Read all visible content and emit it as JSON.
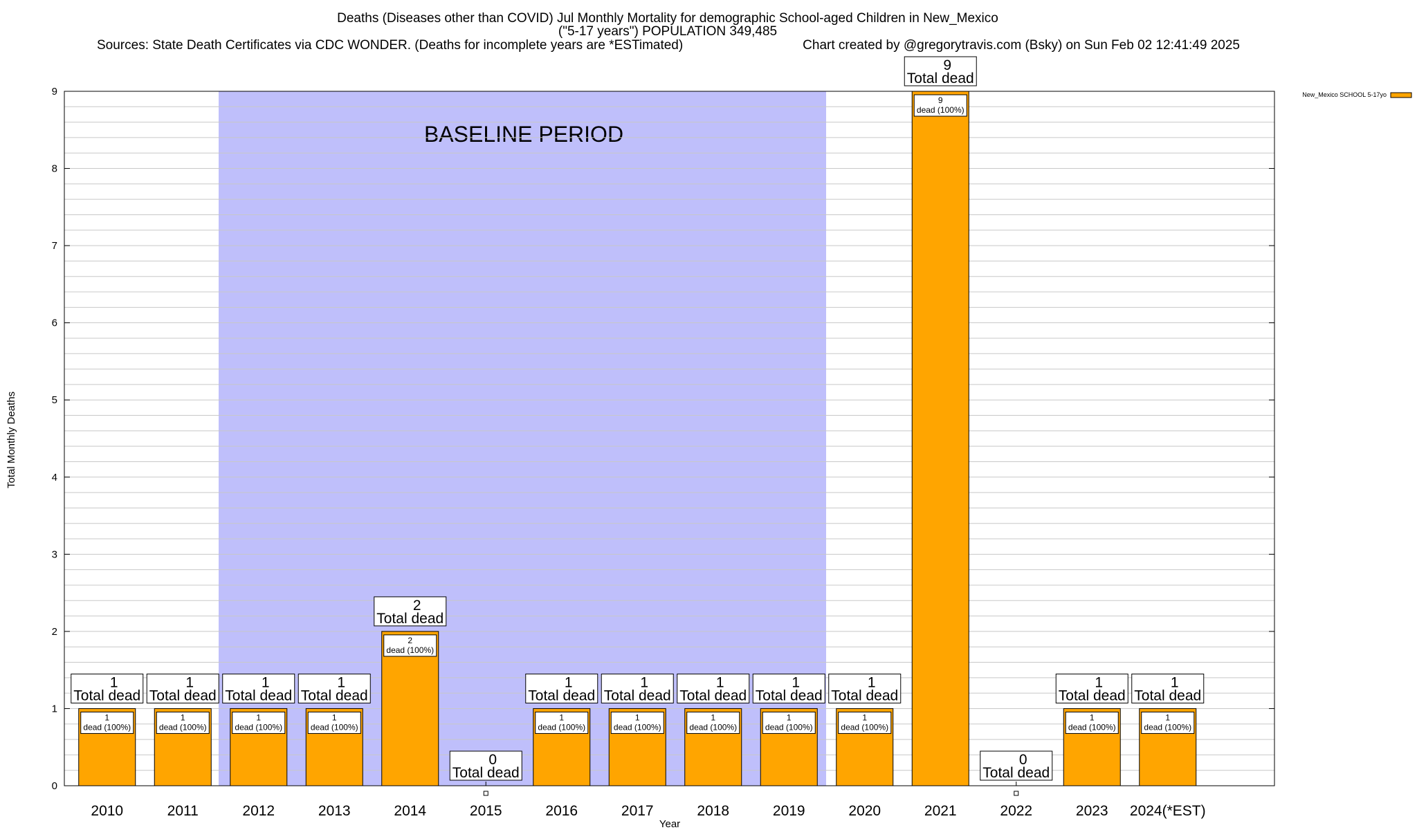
{
  "header": {
    "title_line1": "Deaths (Diseases other than COVID) Jul Monthly Mortality for demographic School-aged Children in New_Mexico",
    "title_line2": "(\"5-17 years\") POPULATION 349,485",
    "sources": "Sources: State Death Certificates via CDC WONDER. (Deaths for incomplete years are *ESTimated)",
    "credit": "Chart created by @gregorytravis.com (Bsky) on Sun Feb 02 12:41:49 2025"
  },
  "annotations": {
    "baseline_label": "BASELINE PERIOD",
    "total_label": "Total dead",
    "dead_label": "dead (100%)"
  },
  "colors": {
    "bar": "#ffa500",
    "baseline_shading": "#bfbffb",
    "grid": "#c8c8c8"
  },
  "chart_data": {
    "type": "bar",
    "title": "Deaths (Diseases other than COVID) Jul Monthly Mortality for demographic School-aged Children in New_Mexico",
    "xlabel": "Year",
    "ylabel": "Total Monthly Deaths",
    "ylim": [
      0,
      9
    ],
    "yticks": [
      0,
      1,
      2,
      3,
      4,
      5,
      6,
      7,
      8,
      9
    ],
    "grid": true,
    "legend_position": "top-right",
    "baseline_period": [
      "2012",
      "2019"
    ],
    "categories": [
      "2010",
      "2011",
      "2012",
      "2013",
      "2014",
      "2015",
      "2016",
      "2017",
      "2018",
      "2019",
      "2020",
      "2021",
      "2022",
      "2023",
      "2024(*EST)"
    ],
    "series": [
      {
        "name": "New_Mexico SCHOOL 5-17yo",
        "values": [
          1,
          1,
          1,
          1,
          2,
          0,
          1,
          1,
          1,
          1,
          1,
          9,
          0,
          1,
          1
        ]
      }
    ]
  }
}
